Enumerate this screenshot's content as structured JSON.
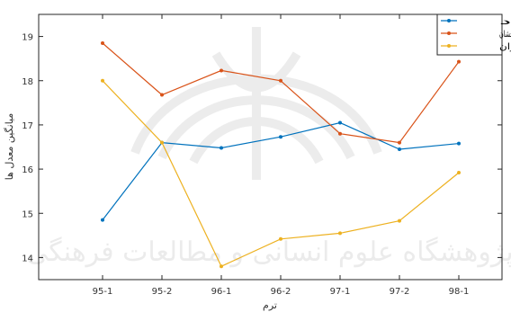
{
  "watermark": {
    "text": "پژوهشگاه علوم انسانی و مطالعات فرهنگی"
  },
  "chart_data": {
    "type": "line",
    "categories": [
      "95-1",
      "95-2",
      "96-1",
      "96-2",
      "97-1",
      "97-2",
      "98-1"
    ],
    "xlabel": "ترم",
    "ylabel": "میانگین معدل ها",
    "ylim": [
      13.5,
      19.5
    ],
    "yticks": [
      14,
      15,
      16,
      17,
      18,
      19
    ],
    "grid": false,
    "legend_position": "top-right",
    "series": [
      {
        "name": "آزاد",
        "color": "#0072BD",
        "values": [
          14.85,
          16.6,
          16.48,
          16.73,
          17.05,
          16.45,
          16.58
        ]
      },
      {
        "name": "استعداد درخشان",
        "color": "#D95319",
        "values": [
          18.85,
          17.68,
          18.23,
          18.0,
          16.8,
          16.6,
          18.43
        ]
      },
      {
        "name": "ایثارگران",
        "color": "#EDB120",
        "values": [
          18.0,
          16.6,
          13.8,
          14.42,
          14.55,
          14.83,
          15.92
        ]
      }
    ]
  }
}
